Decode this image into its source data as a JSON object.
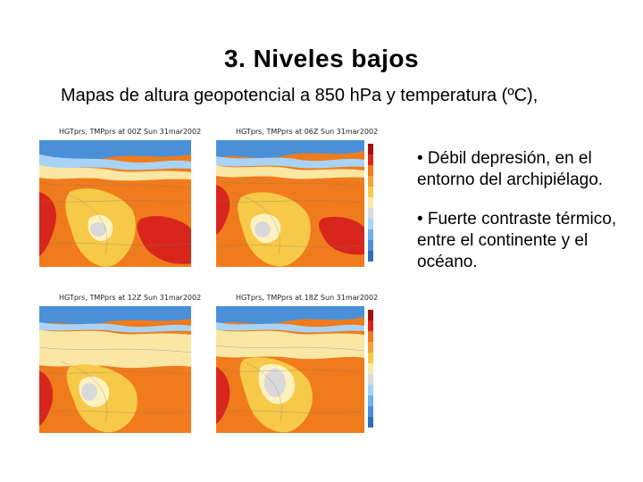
{
  "slide": {
    "title": "3. Niveles bajos",
    "subtitle": "Mapas de altura geopotencial a 850 hPa y temperatura (ºC),"
  },
  "maps": [
    {
      "caption": "HGTprs, TMPprs at 00Z Sun 31mar2002"
    },
    {
      "caption": "HGTprs, TMPprs at 06Z Sun 31mar2002"
    },
    {
      "caption": "HGTprs, TMPprs at 12Z Sun 31mar2002"
    },
    {
      "caption": "HGTprs, TMPprs at 18Z Sun 31mar2002"
    }
  ],
  "bullets": [
    "• Débil depresión, en el entorno del archipiélago.",
    "• Fuerte contraste térmico, entre el continente y el océano."
  ],
  "colors": {
    "ocean_cool": "#4a90d9",
    "warm_light": "#f7c948",
    "warm_mid": "#f07b1c",
    "warm_hot": "#d8261c",
    "low_center": "#d9d9d9"
  }
}
